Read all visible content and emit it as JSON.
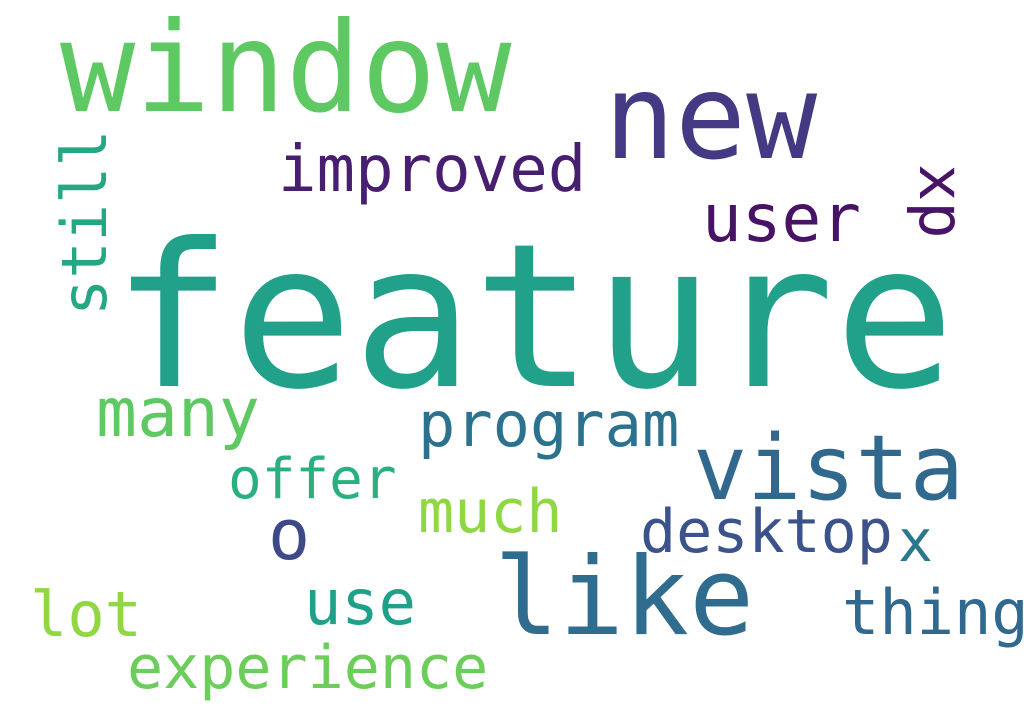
{
  "words": {
    "feature": {
      "text": "feature",
      "color": "#21a08a"
    },
    "window": {
      "text": "window",
      "color": "#5ec962"
    },
    "new": {
      "text": "new",
      "color": "#443983"
    },
    "improved": {
      "text": "improved",
      "color": "#481f70"
    },
    "user": {
      "text": "user",
      "color": "#471365"
    },
    "xp": {
      "text": "xp",
      "color": "#481467"
    },
    "still": {
      "text": "still",
      "color": "#26a784"
    },
    "many": {
      "text": "many",
      "color": "#5ec962"
    },
    "program": {
      "text": "program",
      "color": "#2c728e"
    },
    "vista": {
      "text": "vista",
      "color": "#31688e"
    },
    "offer": {
      "text": "offer",
      "color": "#2ab07f"
    },
    "much": {
      "text": "much",
      "color": "#8fd744"
    },
    "o": {
      "text": "o",
      "color": "#3e4989"
    },
    "desktop": {
      "text": "desktop",
      "color": "#3b528b"
    },
    "x": {
      "text": "x",
      "color": "#2a788e"
    },
    "like": {
      "text": "like",
      "color": "#2f6c8e"
    },
    "use": {
      "text": "use",
      "color": "#1fa088"
    },
    "thing": {
      "text": "thing",
      "color": "#31688e"
    },
    "lot": {
      "text": "lot",
      "color": "#90d743"
    },
    "experience": {
      "text": "experience",
      "color": "#6ccd5a"
    }
  }
}
